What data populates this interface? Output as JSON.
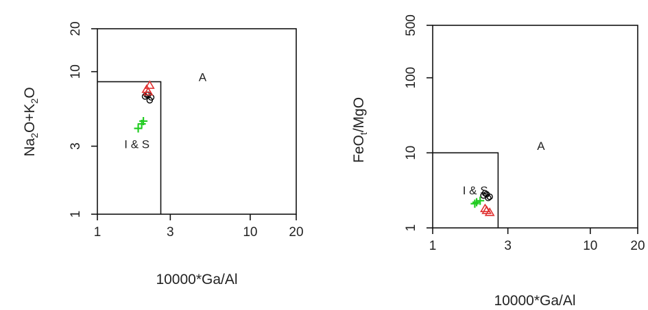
{
  "chart_data": [
    {
      "type": "scatter",
      "xlabel": "10000*Ga/Al",
      "ylabel": "Na2O+K2O",
      "x_scale": "log",
      "y_scale": "log",
      "xlim": [
        1,
        20
      ],
      "ylim": [
        1,
        20
      ],
      "x_ticks": [
        "1",
        "3",
        "10",
        "20"
      ],
      "y_ticks": [
        "1",
        "3",
        "10",
        "20"
      ],
      "field_boundary": [
        [
          1,
          8.5
        ],
        [
          2.6,
          8.5
        ],
        [
          2.6,
          1
        ]
      ],
      "field_labels": [
        {
          "text": "A",
          "x": 4.6,
          "y": 8.6
        },
        {
          "text": "I & S",
          "x": 1.5,
          "y": 2.9
        }
      ],
      "series": [
        {
          "marker": "circle",
          "color": "#000000",
          "points": [
            [
              2.05,
              6.7
            ],
            [
              2.15,
              6.9
            ],
            [
              2.25,
              6.6
            ],
            [
              2.2,
              6.3
            ],
            [
              2.1,
              6.9
            ]
          ]
        },
        {
          "marker": "triangle",
          "color": "#e03030",
          "points": [
            [
              2.2,
              8.0
            ],
            [
              2.15,
              7.2
            ],
            [
              2.1,
              7.5
            ]
          ]
        },
        {
          "marker": "plus",
          "color": "#22cc22",
          "points": [
            [
              1.95,
              4.3
            ],
            [
              2.0,
              4.5
            ],
            [
              1.85,
              4.0
            ]
          ]
        }
      ]
    },
    {
      "type": "scatter",
      "xlabel": "10000*Ga/Al",
      "ylabel": "FeOt/MgO",
      "x_scale": "log",
      "y_scale": "log",
      "xlim": [
        1,
        20
      ],
      "ylim": [
        1,
        500
      ],
      "x_ticks": [
        "1",
        "3",
        "10",
        "20"
      ],
      "y_ticks": [
        "1",
        "10",
        "100",
        "500"
      ],
      "field_boundary": [
        [
          1,
          10
        ],
        [
          2.6,
          10
        ],
        [
          2.6,
          1
        ]
      ],
      "field_labels": [
        {
          "text": "A",
          "x": 4.6,
          "y": 11
        },
        {
          "text": "I & S",
          "x": 1.55,
          "y": 2.8
        }
      ],
      "series": [
        {
          "marker": "circle",
          "color": "#000000",
          "points": [
            [
              2.1,
              2.7
            ],
            [
              2.2,
              2.8
            ],
            [
              2.25,
              2.5
            ],
            [
              2.15,
              2.9
            ],
            [
              2.3,
              2.6
            ]
          ]
        },
        {
          "marker": "triangle",
          "color": "#e03030",
          "points": [
            [
              2.2,
              1.7
            ],
            [
              2.3,
              1.6
            ],
            [
              2.15,
              1.8
            ]
          ]
        },
        {
          "marker": "plus",
          "color": "#22cc22",
          "points": [
            [
              1.9,
              2.2
            ],
            [
              2.0,
              2.3
            ],
            [
              1.85,
              2.1
            ]
          ]
        }
      ]
    }
  ]
}
